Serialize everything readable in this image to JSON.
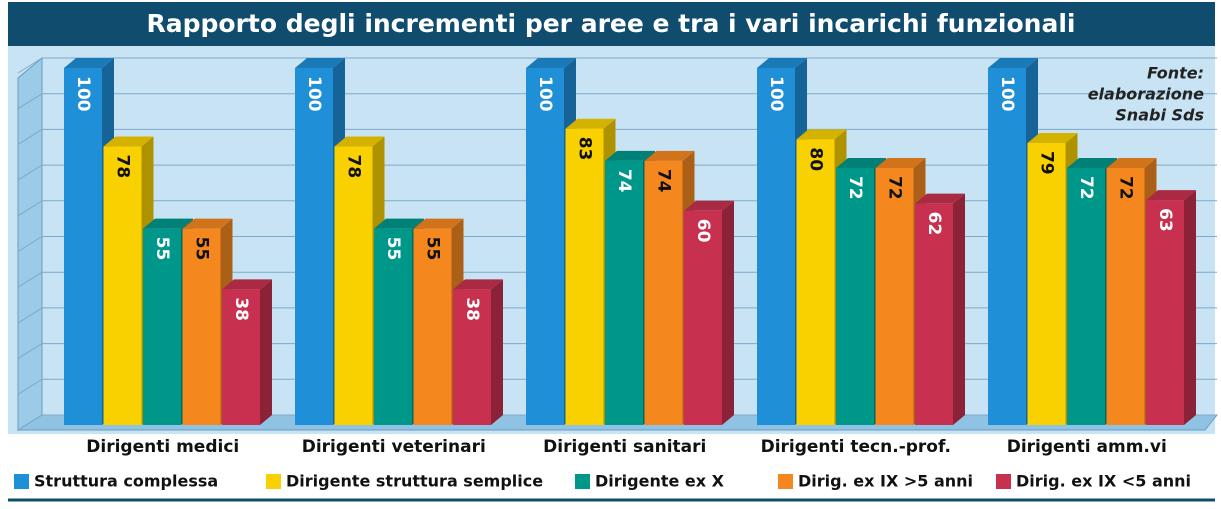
{
  "chart_data": {
    "type": "bar3d",
    "title": "Rapporto degli incrementi per aree e tra i vari incarichi funzionali",
    "annotation": [
      "Fonte:",
      "elaborazione",
      "Snabi Sds"
    ],
    "categories": [
      "Dirigenti medici",
      "Dirigenti veterinari",
      "Dirigenti sanitari",
      "Dirigenti tecn.-prof.",
      "Dirigenti amm.vi"
    ],
    "series": [
      {
        "name": "Struttura complessa",
        "color": "#1f8fd8",
        "values": [
          100,
          100,
          100,
          100,
          100
        ]
      },
      {
        "name": "Dirigente struttura semplice",
        "color": "#f9d100",
        "values": [
          78,
          78,
          83,
          80,
          79
        ]
      },
      {
        "name": "Dirigente ex X",
        "color": "#00978b",
        "values": [
          55,
          55,
          74,
          72,
          72
        ]
      },
      {
        "name": "Dirig. ex IX >5 anni",
        "color": "#f5871f",
        "values": [
          55,
          55,
          74,
          72,
          72
        ]
      },
      {
        "name": "Dirig. ex IX <5 anni",
        "color": "#c8304f",
        "values": [
          38,
          38,
          60,
          62,
          63
        ]
      }
    ],
    "ylim": [
      0,
      100
    ],
    "yticks": [
      0,
      10,
      20,
      30,
      40,
      50,
      60,
      70,
      80,
      90,
      100
    ],
    "grid": true
  }
}
